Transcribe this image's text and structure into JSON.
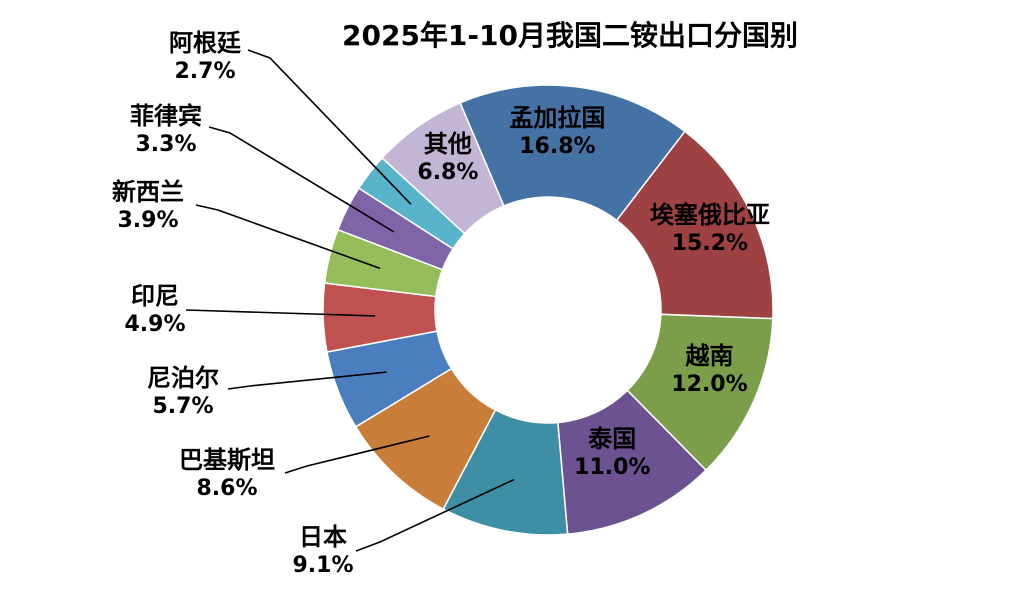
{
  "title": "2025年1-10月我国二铵出口分国别",
  "chart_data": {
    "type": "pie",
    "subtype": "donut",
    "title": "2025年1-10月我国二铵出口分国别",
    "unit": "%",
    "legend": "none",
    "labels_on_chart": true,
    "start_angle_deg": -23,
    "total": 100.0,
    "segments": [
      {
        "label": "孟加拉国",
        "value": 16.8,
        "pct_label": "16.8%",
        "color": "#4472A4",
        "label_placement": "inside"
      },
      {
        "label": "埃塞俄比亚",
        "value": 15.2,
        "pct_label": "15.2%",
        "color": "#9E4142",
        "label_placement": "inside"
      },
      {
        "label": "越南",
        "value": 12.0,
        "pct_label": "12.0%",
        "color": "#7A9E49",
        "label_placement": "inside"
      },
      {
        "label": "泰国",
        "value": 11.0,
        "pct_label": "11.0%",
        "color": "#6C5290",
        "label_placement": "inside"
      },
      {
        "label": "日本",
        "value": 9.1,
        "pct_label": "9.1%",
        "color": "#3E8EA6",
        "label_placement": "outside"
      },
      {
        "label": "巴基斯坦",
        "value": 8.6,
        "pct_label": "8.6%",
        "color": "#C87D38",
        "label_placement": "outside"
      },
      {
        "label": "尼泊尔",
        "value": 5.7,
        "pct_label": "5.7%",
        "color": "#4A7EBE",
        "label_placement": "outside"
      },
      {
        "label": "印尼",
        "value": 4.9,
        "pct_label": "4.9%",
        "color": "#C05151",
        "label_placement": "outside"
      },
      {
        "label": "新西兰",
        "value": 3.9,
        "pct_label": "3.9%",
        "color": "#95BD5B",
        "label_placement": "outside"
      },
      {
        "label": "菲律宾",
        "value": 3.3,
        "pct_label": "3.3%",
        "color": "#8064A8",
        "label_placement": "outside"
      },
      {
        "label": "阿根廷",
        "value": 2.7,
        "pct_label": "2.7%",
        "color": "#58B4CA",
        "label_placement": "outside"
      },
      {
        "label": "其他",
        "value": 6.8,
        "pct_label": "6.8%",
        "color": "#C3B5D5",
        "label_placement": "inside"
      }
    ]
  }
}
